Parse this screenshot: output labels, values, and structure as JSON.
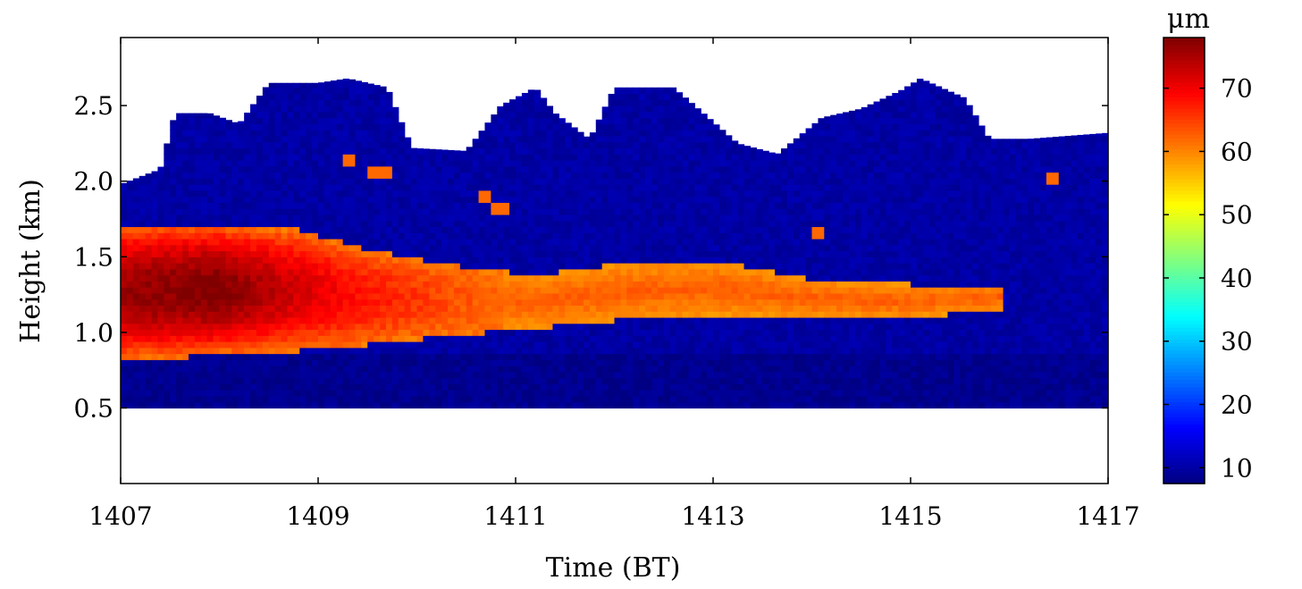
{
  "chart_data": {
    "type": "heatmap",
    "title": "",
    "xlabel": "Time (BT)",
    "ylabel": "Height (km)",
    "xlim": [
      1407,
      1417
    ],
    "ylim": [
      0.0,
      2.95
    ],
    "x_ticks": [
      1407,
      1409,
      1411,
      1413,
      1415,
      1417
    ],
    "x_tick_labels": [
      "1407",
      "1409",
      "1411",
      "1413",
      "1415",
      "1417"
    ],
    "y_ticks": [
      0.5,
      1.0,
      1.5,
      2.0,
      2.5
    ],
    "y_tick_labels": [
      "0.5",
      "1.0",
      "1.5",
      "2.0",
      "2.5"
    ],
    "colorbar": {
      "unit": "μm",
      "range": [
        7.5,
        78
      ],
      "ticks": [
        10,
        20,
        30,
        40,
        50,
        60,
        70
      ],
      "tick_labels": [
        "10",
        "20",
        "30",
        "40",
        "50",
        "60",
        "70"
      ],
      "colormap": "jet"
    },
    "grid": false,
    "data_bottom_km": 0.5,
    "cloud_top_km": [
      [
        1407.0,
        1.98
      ],
      [
        1407.4,
        2.08
      ],
      [
        1407.55,
        2.45
      ],
      [
        1407.9,
        2.45
      ],
      [
        1408.2,
        2.38
      ],
      [
        1408.5,
        2.65
      ],
      [
        1409.0,
        2.65
      ],
      [
        1409.3,
        2.68
      ],
      [
        1409.7,
        2.62
      ],
      [
        1409.95,
        2.22
      ],
      [
        1410.5,
        2.2
      ],
      [
        1410.85,
        2.5
      ],
      [
        1411.2,
        2.62
      ],
      [
        1411.4,
        2.45
      ],
      [
        1411.75,
        2.28
      ],
      [
        1412.0,
        2.62
      ],
      [
        1412.6,
        2.62
      ],
      [
        1412.9,
        2.45
      ],
      [
        1413.25,
        2.25
      ],
      [
        1413.65,
        2.18
      ],
      [
        1414.1,
        2.42
      ],
      [
        1414.5,
        2.48
      ],
      [
        1414.9,
        2.6
      ],
      [
        1415.1,
        2.68
      ],
      [
        1415.55,
        2.55
      ],
      [
        1415.8,
        2.28
      ],
      [
        1416.2,
        2.28
      ],
      [
        1416.6,
        2.3
      ],
      [
        1417.0,
        2.32
      ]
    ],
    "large_droplet_layer": [
      {
        "x": 1407.0,
        "base_km": 0.82,
        "top_km": 1.72,
        "max_um": 76
      },
      {
        "x": 1408.0,
        "base_km": 0.85,
        "top_km": 1.72,
        "max_um": 78
      },
      {
        "x": 1408.8,
        "base_km": 0.88,
        "top_km": 1.68,
        "max_um": 72
      },
      {
        "x": 1409.5,
        "base_km": 0.92,
        "top_km": 1.55,
        "max_um": 68
      },
      {
        "x": 1410.3,
        "base_km": 0.98,
        "top_km": 1.45,
        "max_um": 64
      },
      {
        "x": 1411.2,
        "base_km": 1.03,
        "top_km": 1.38,
        "max_um": 61
      },
      {
        "x": 1412.0,
        "base_km": 1.08,
        "top_km": 1.45,
        "max_um": 60
      },
      {
        "x": 1413.0,
        "base_km": 1.12,
        "top_km": 1.48,
        "max_um": 60
      },
      {
        "x": 1414.0,
        "base_km": 1.1,
        "top_km": 1.35,
        "max_um": 60
      },
      {
        "x": 1415.0,
        "base_km": 1.1,
        "top_km": 1.32,
        "max_um": 60
      },
      {
        "x": 1415.95,
        "base_km": 1.15,
        "top_km": 1.32,
        "max_um": 60
      }
    ],
    "patches": [
      {
        "x": [
          1409.25,
          1409.4
        ],
        "y": [
          2.1,
          2.17
        ],
        "value_um": 62
      },
      {
        "x": [
          1409.5,
          1409.75
        ],
        "y": [
          2.02,
          2.1
        ],
        "value_um": 62
      },
      {
        "x": [
          1410.6,
          1410.75
        ],
        "y": [
          1.85,
          1.93
        ],
        "value_um": 62
      },
      {
        "x": [
          1410.75,
          1410.95
        ],
        "y": [
          1.8,
          1.88
        ],
        "value_um": 62
      },
      {
        "x": [
          1414.0,
          1414.15
        ],
        "y": [
          1.62,
          1.7
        ],
        "value_um": 62
      },
      {
        "x": [
          1416.4,
          1416.5
        ],
        "y": [
          2.0,
          2.06
        ],
        "value_um": 62
      }
    ],
    "background_um": 10
  }
}
